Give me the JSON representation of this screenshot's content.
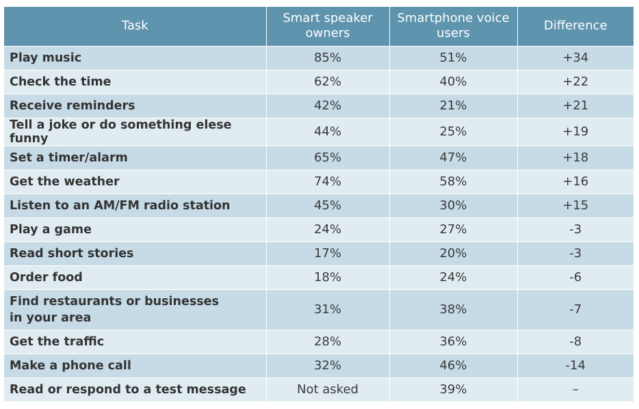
{
  "table": {
    "headers": {
      "task": "Task",
      "smart_speaker_line1": "Smart speaker",
      "smart_speaker_line2": "owners",
      "smartphone_line1": "Smartphone voice",
      "smartphone_line2": "users",
      "difference": "Difference"
    },
    "rows": [
      {
        "task": "Play music",
        "smart_speaker": "85%",
        "smartphone": "51%",
        "difference": "+34"
      },
      {
        "task": "Check the time",
        "smart_speaker": "62%",
        "smartphone": "40%",
        "difference": "+22"
      },
      {
        "task": "Receive reminders",
        "smart_speaker": "42%",
        "smartphone": "21%",
        "difference": "+21"
      },
      {
        "task": "Tell a joke or do something elese funny",
        "smart_speaker": "44%",
        "smartphone": "25%",
        "difference": "+19"
      },
      {
        "task": "Set a timer/alarm",
        "smart_speaker": "65%",
        "smartphone": "47%",
        "difference": "+18"
      },
      {
        "task": "Get the weather",
        "smart_speaker": "74%",
        "smartphone": "58%",
        "difference": "+16"
      },
      {
        "task": "Listen to an AM/FM radio station",
        "smart_speaker": "45%",
        "smartphone": "30%",
        "difference": "+15"
      },
      {
        "task": "Play a game",
        "smart_speaker": "24%",
        "smartphone": "27%",
        "difference": "-3"
      },
      {
        "task": "Read short stories",
        "smart_speaker": "17%",
        "smartphone": "20%",
        "difference": "-3"
      },
      {
        "task": "Order food",
        "smart_speaker": "18%",
        "smartphone": "24%",
        "difference": "-6"
      },
      {
        "task": "Find restaurants or businesses",
        "task_line2": "in your area",
        "smart_speaker": "31%",
        "smartphone": "38%",
        "difference": "-7"
      },
      {
        "task": "Get the traffic",
        "smart_speaker": "28%",
        "smartphone": "36%",
        "difference": "-8"
      },
      {
        "task": "Make a phone call",
        "smart_speaker": "32%",
        "smartphone": "46%",
        "difference": "-14"
      },
      {
        "task": "Read or respond to a test message",
        "smart_speaker": "Not asked",
        "smartphone": "39%",
        "difference": "–"
      }
    ]
  },
  "colors": {
    "header_bg": "#5e94ad",
    "row_dark": "#c6dbe6",
    "row_light": "#e1ecf2"
  }
}
